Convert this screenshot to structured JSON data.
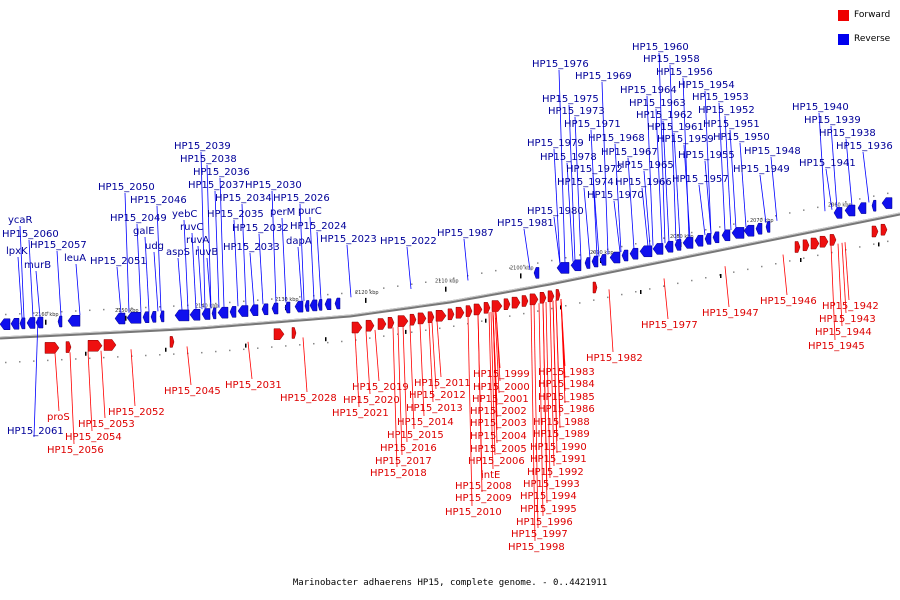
{
  "caption": "Marinobacter adhaerens HP15, complete genome. - 0..4421911",
  "legend": [
    {
      "label": "Forward",
      "color": "#ee0000"
    },
    {
      "label": "Reverse",
      "color": "#0000ee"
    }
  ],
  "colors": {
    "forward": "#dd0000",
    "reverse": "#000099",
    "backbone": "#777777"
  },
  "ticks": [
    "2160 kbp",
    "2150 kbp",
    "2140 kbp",
    "2130 kbp",
    "2120 kbp",
    "2110 kbp",
    "2100 kbp",
    "2090 kbp",
    "2080 kbp",
    "2070 kbp",
    "2060 kbp"
  ],
  "labels": {
    "reverse": [
      "ycaR",
      "HP15_2060",
      "lpxK",
      "murB",
      "HP15_2057",
      "leuA",
      "HP15_2051",
      "HP15_2050",
      "HP15_2049",
      "HP15_2046",
      "galE",
      "udg",
      "yebC",
      "aspS",
      "ruvC",
      "ruvA",
      "ruvB",
      "HP15_2039",
      "HP15_2038",
      "HP15_2036",
      "HP15_2037",
      "HP15_2034",
      "HP15_2035",
      "HP15_2032",
      "HP15_2033",
      "HP15_2030",
      "perM",
      "HP15_2026",
      "purC",
      "dapA",
      "HP15_2024",
      "HP15_2023",
      "HP15_2022",
      "HP15_1987",
      "HP15_1981",
      "HP15_1980",
      "HP15_1979",
      "HP15_1978",
      "HP15_1976",
      "HP15_1975",
      "HP15_1973",
      "HP15_1974",
      "HP15_1972",
      "HP15_1971",
      "HP15_1970",
      "HP15_1969",
      "HP15_1968",
      "HP15_1967",
      "HP15_1966",
      "HP15_1965",
      "HP15_1964",
      "HP15_1963",
      "HP15_1962",
      "HP15_1961",
      "HP15_1960",
      "HP15_1959",
      "HP15_1958",
      "HP15_1957",
      "HP15_1956",
      "HP15_1955",
      "HP15_1954",
      "HP15_1953",
      "HP15_1952",
      "HP15_1951",
      "HP15_1950",
      "HP15_1949",
      "HP15_1948",
      "HP15_1941",
      "HP15_1940",
      "HP15_1939",
      "HP15_1938",
      "HP15_1936",
      "HP15_2061"
    ],
    "forward": [
      "proS",
      "HP15_2053",
      "HP15_2052",
      "HP15_2054",
      "HP15_2056",
      "HP15_2045",
      "HP15_2031",
      "HP15_2028",
      "HP15_2019",
      "HP15_2020",
      "HP15_2021",
      "HP15_2011",
      "HP15_2012",
      "HP15_2013",
      "HP15_2014",
      "HP15_2015",
      "HP15_2016",
      "HP15_2017",
      "HP15_2018",
      "HP15_1999",
      "HP15_2000",
      "HP15_2001",
      "HP15_2002",
      "HP15_2003",
      "HP15_2004",
      "HP15_2005",
      "HP15_2006",
      "intE",
      "HP15_2008",
      "HP15_2009",
      "HP15_2010",
      "HP15_1983",
      "HP15_1984",
      "HP15_1985",
      "HP15_1986",
      "HP15_1988",
      "HP15_1989",
      "HP15_1990",
      "HP15_1991",
      "HP15_1992",
      "HP15_1993",
      "HP15_1994",
      "HP15_1995",
      "HP15_1996",
      "HP15_1997",
      "HP15_1998",
      "HP15_1982",
      "HP15_1977",
      "HP15_1947",
      "HP15_1946",
      "HP15_1942",
      "HP15_1943",
      "HP15_1944",
      "HP15_1945"
    ]
  }
}
